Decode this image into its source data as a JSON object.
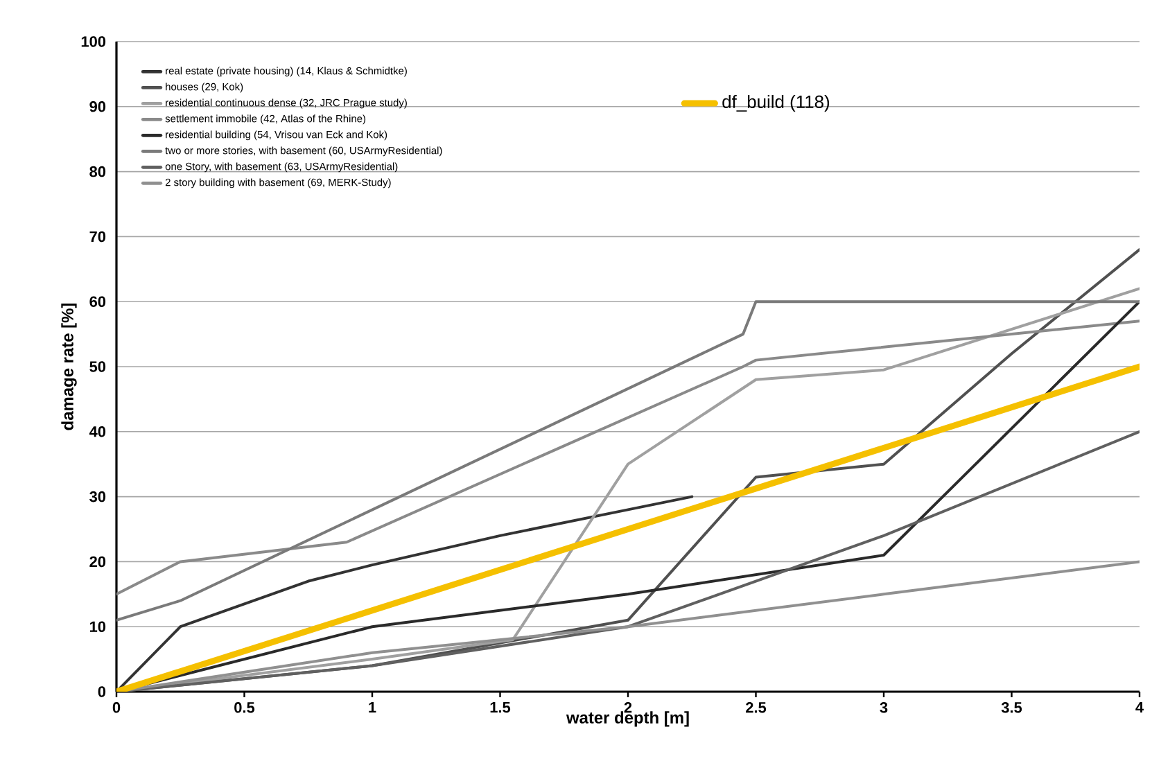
{
  "chart_data": {
    "type": "line",
    "xlabel": "water depth [m]",
    "ylabel": "damage rate [%]",
    "xlim": [
      0,
      4
    ],
    "ylim": [
      0,
      100
    ],
    "xticks": [
      0,
      0.5,
      1,
      1.5,
      2,
      2.5,
      3,
      3.5,
      4
    ],
    "yticks": [
      0,
      10,
      20,
      30,
      40,
      50,
      60,
      70,
      80,
      90,
      100
    ],
    "grid": "y",
    "legend": "top left",
    "marker": "none",
    "line_style": "solid",
    "series": [
      {
        "name": "real estate (private housing) (14, Klaus & Schmidtke)",
        "color": "#333333",
        "x": [
          0,
          0.25,
          0.75,
          1,
          1.5,
          2,
          2.25
        ],
        "values": [
          0,
          10,
          17,
          19.5,
          24,
          28,
          30
        ]
      },
      {
        "name": "houses (29, Kok)",
        "color": "#505050",
        "x": [
          0,
          1,
          2,
          2.5,
          3,
          3.5,
          4
        ],
        "values": [
          0,
          4,
          11,
          33,
          35,
          52,
          68
        ]
      },
      {
        "name": "residential continuous dense (32, JRC Prague study)",
        "color": "#a0a0a0",
        "x": [
          0,
          1,
          1.55,
          2,
          2.5,
          3,
          4
        ],
        "values": [
          0,
          5,
          8,
          35,
          48,
          49.5,
          62
        ]
      },
      {
        "name": "settlement immobile (42, Atlas of the Rhine)",
        "color": "#8a8a8a",
        "x": [
          0,
          0.25,
          0.9,
          2.45,
          2.5,
          4
        ],
        "values": [
          15,
          20,
          23,
          50,
          51,
          57
        ]
      },
      {
        "name": "residential building (54, Vrisou van Eck and Kok)",
        "color": "#2a2a2a",
        "x": [
          0,
          1,
          2,
          3,
          4
        ],
        "values": [
          0,
          10,
          15,
          21,
          60
        ]
      },
      {
        "name": "two or more stories, with basement (60, USArmyResidential)",
        "color": "#7a7a7a",
        "x": [
          0,
          0.25,
          2.45,
          2.5,
          4
        ],
        "values": [
          11,
          14,
          55,
          60,
          60
        ]
      },
      {
        "name": "one Story, with basement (63, USArmyResidential)",
        "color": "#606060",
        "x": [
          0,
          1,
          2,
          3,
          4
        ],
        "values": [
          0,
          4,
          10,
          24,
          40
        ]
      },
      {
        "name": "2 story building with basement (69, MERK-Study)",
        "color": "#909090",
        "x": [
          0,
          1,
          2,
          3,
          4
        ],
        "values": [
          0,
          6,
          10,
          15,
          20
        ]
      },
      {
        "name": "df_build (118)",
        "color": "#f5c000",
        "x": [
          0,
          4
        ],
        "values": [
          0,
          50
        ]
      }
    ]
  }
}
